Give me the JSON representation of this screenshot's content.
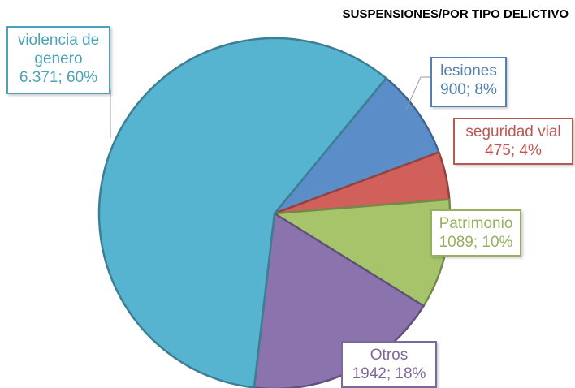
{
  "chart_data": {
    "type": "pie",
    "title": "SUSPENSIONES/POR TIPO DELICTIVO",
    "categories": [
      "violencia de genero",
      "lesiones",
      "seguridad vial",
      "Patrimonio",
      "Otros"
    ],
    "values": [
      6371,
      900,
      475,
      1089,
      1942
    ],
    "value_labels": [
      "6.371; 60%",
      "900; 8%",
      "475; 4%",
      "1089; 10%",
      "1942; 18%"
    ],
    "colors": [
      "#56b4d0",
      "#5b8ec9",
      "#d1605a",
      "#a6c56b",
      "#8b74ae"
    ]
  }
}
